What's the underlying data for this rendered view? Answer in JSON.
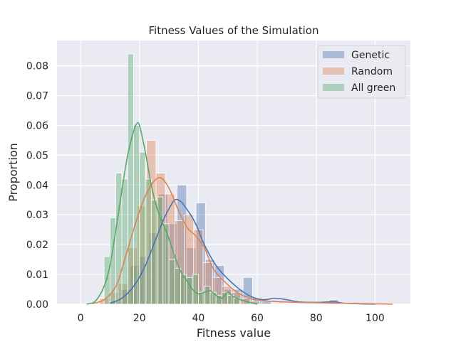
{
  "chart_data": {
    "type": "histogram",
    "title": "Fitness Values of the Simulation",
    "xlabel": "Fitness value",
    "ylabel": "Proportion",
    "xlim": [
      -8,
      112
    ],
    "ylim": [
      0,
      0.0885
    ],
    "x_ticks": [
      0,
      20,
      40,
      60,
      80,
      100
    ],
    "y_ticks": [
      0.0,
      0.01,
      0.02,
      0.03,
      0.04,
      0.05,
      0.06,
      0.07,
      0.08
    ],
    "x_tick_labels": [
      "0",
      "20",
      "40",
      "60",
      "80",
      "100"
    ],
    "y_tick_labels": [
      "0.00",
      "0.01",
      "0.02",
      "0.03",
      "0.04",
      "0.05",
      "0.06",
      "0.07",
      "0.08"
    ],
    "grid": true,
    "legend_position": "top-right",
    "background": "#EAEAF2",
    "series": [
      {
        "name": "Genetic",
        "color": "#4C72B0",
        "bin_width": 3.2,
        "bins": [
          {
            "x": 12,
            "value": 0.001
          },
          {
            "x": 15.2,
            "value": 0.005
          },
          {
            "x": 18.4,
            "value": 0.013
          },
          {
            "x": 21.6,
            "value": 0.016
          },
          {
            "x": 24.8,
            "value": 0.024
          },
          {
            "x": 28.0,
            "value": 0.037
          },
          {
            "x": 31.2,
            "value": 0.027
          },
          {
            "x": 34.4,
            "value": 0.04
          },
          {
            "x": 37.6,
            "value": 0.019
          },
          {
            "x": 40.8,
            "value": 0.034
          },
          {
            "x": 44.0,
            "value": 0.015
          },
          {
            "x": 47.2,
            "value": 0.013
          },
          {
            "x": 50.4,
            "value": 0.005
          },
          {
            "x": 53.6,
            "value": 0.005
          },
          {
            "x": 56.8,
            "value": 0.009
          },
          {
            "x": 60.0,
            "value": 0.002
          },
          {
            "x": 63.2,
            "value": 0.001
          },
          {
            "x": 86.0,
            "value": 0.0015
          }
        ],
        "kde": {
          "x": [
            10,
            14,
            18,
            22,
            26,
            28,
            30,
            32,
            34,
            36,
            38,
            40,
            42,
            46,
            50,
            54,
            58,
            62,
            66,
            70,
            74,
            80,
            86,
            90,
            100
          ],
          "y": [
            0.0003,
            0.002,
            0.006,
            0.013,
            0.023,
            0.028,
            0.032,
            0.035,
            0.0345,
            0.032,
            0.029,
            0.025,
            0.02,
            0.013,
            0.0085,
            0.005,
            0.0025,
            0.0015,
            0.002,
            0.0015,
            0.0008,
            0.0006,
            0.0008,
            0.0003,
            0.0
          ]
        }
      },
      {
        "name": "Random",
        "color": "#DD8452",
        "bin_width": 3.2,
        "bins": [
          {
            "x": 8,
            "value": 0.002
          },
          {
            "x": 11.2,
            "value": 0.004
          },
          {
            "x": 14.4,
            "value": 0.007
          },
          {
            "x": 17.6,
            "value": 0.019
          },
          {
            "x": 20.8,
            "value": 0.033
          },
          {
            "x": 24.0,
            "value": 0.055
          },
          {
            "x": 27.2,
            "value": 0.044
          },
          {
            "x": 30.4,
            "value": 0.037
          },
          {
            "x": 33.6,
            "value": 0.028
          },
          {
            "x": 36.8,
            "value": 0.03
          },
          {
            "x": 40.0,
            "value": 0.025
          },
          {
            "x": 43.2,
            "value": 0.014
          },
          {
            "x": 46.4,
            "value": 0.009
          },
          {
            "x": 49.6,
            "value": 0.006
          },
          {
            "x": 52.8,
            "value": 0.004
          },
          {
            "x": 56.0,
            "value": 0.002
          },
          {
            "x": 59.2,
            "value": 0.001
          }
        ],
        "kde": {
          "x": [
            4,
            8,
            12,
            15,
            18,
            21,
            24,
            27,
            30,
            33,
            36,
            39,
            42,
            45,
            48,
            52,
            56,
            60,
            66,
            74,
            84,
            96,
            106
          ],
          "y": [
            0.0002,
            0.0015,
            0.006,
            0.015,
            0.025,
            0.034,
            0.04,
            0.0425,
            0.039,
            0.032,
            0.026,
            0.023,
            0.019,
            0.012,
            0.0085,
            0.0048,
            0.0025,
            0.0014,
            0.0009,
            0.0006,
            0.0004,
            0.0002,
            0.0
          ]
        }
      },
      {
        "name": "All green",
        "color": "#55A868",
        "bin_width": 2.0,
        "bins": [
          {
            "x": 9,
            "value": 0.016
          },
          {
            "x": 11,
            "value": 0.029
          },
          {
            "x": 13,
            "value": 0.044
          },
          {
            "x": 15,
            "value": 0.042
          },
          {
            "x": 17,
            "value": 0.084
          },
          {
            "x": 19,
            "value": 0.06
          },
          {
            "x": 21,
            "value": 0.051
          },
          {
            "x": 23,
            "value": 0.042
          },
          {
            "x": 25,
            "value": 0.035
          },
          {
            "x": 27,
            "value": 0.036
          },
          {
            "x": 29,
            "value": 0.027
          },
          {
            "x": 31,
            "value": 0.015
          },
          {
            "x": 33,
            "value": 0.012
          },
          {
            "x": 35,
            "value": 0.01
          },
          {
            "x": 37,
            "value": 0.009
          },
          {
            "x": 39,
            "value": 0.01
          },
          {
            "x": 41,
            "value": 0.004
          },
          {
            "x": 43,
            "value": 0.006
          },
          {
            "x": 45,
            "value": 0.004
          },
          {
            "x": 47,
            "value": 0.003
          },
          {
            "x": 49,
            "value": 0.004
          },
          {
            "x": 51,
            "value": 0.003
          },
          {
            "x": 53,
            "value": 0.002
          }
        ],
        "kde": {
          "x": [
            2,
            5,
            8,
            10,
            12,
            14,
            16,
            18,
            19,
            20,
            22,
            24,
            26,
            28,
            30,
            32,
            34,
            36,
            38,
            40,
            42,
            44,
            46,
            48,
            50,
            52,
            56,
            60
          ],
          "y": [
            0.0,
            0.001,
            0.006,
            0.013,
            0.025,
            0.038,
            0.05,
            0.058,
            0.0605,
            0.06,
            0.051,
            0.04,
            0.032,
            0.027,
            0.022,
            0.016,
            0.011,
            0.008,
            0.005,
            0.0035,
            0.004,
            0.0045,
            0.003,
            0.002,
            0.004,
            0.0025,
            0.001,
            0.0
          ]
        }
      }
    ]
  }
}
